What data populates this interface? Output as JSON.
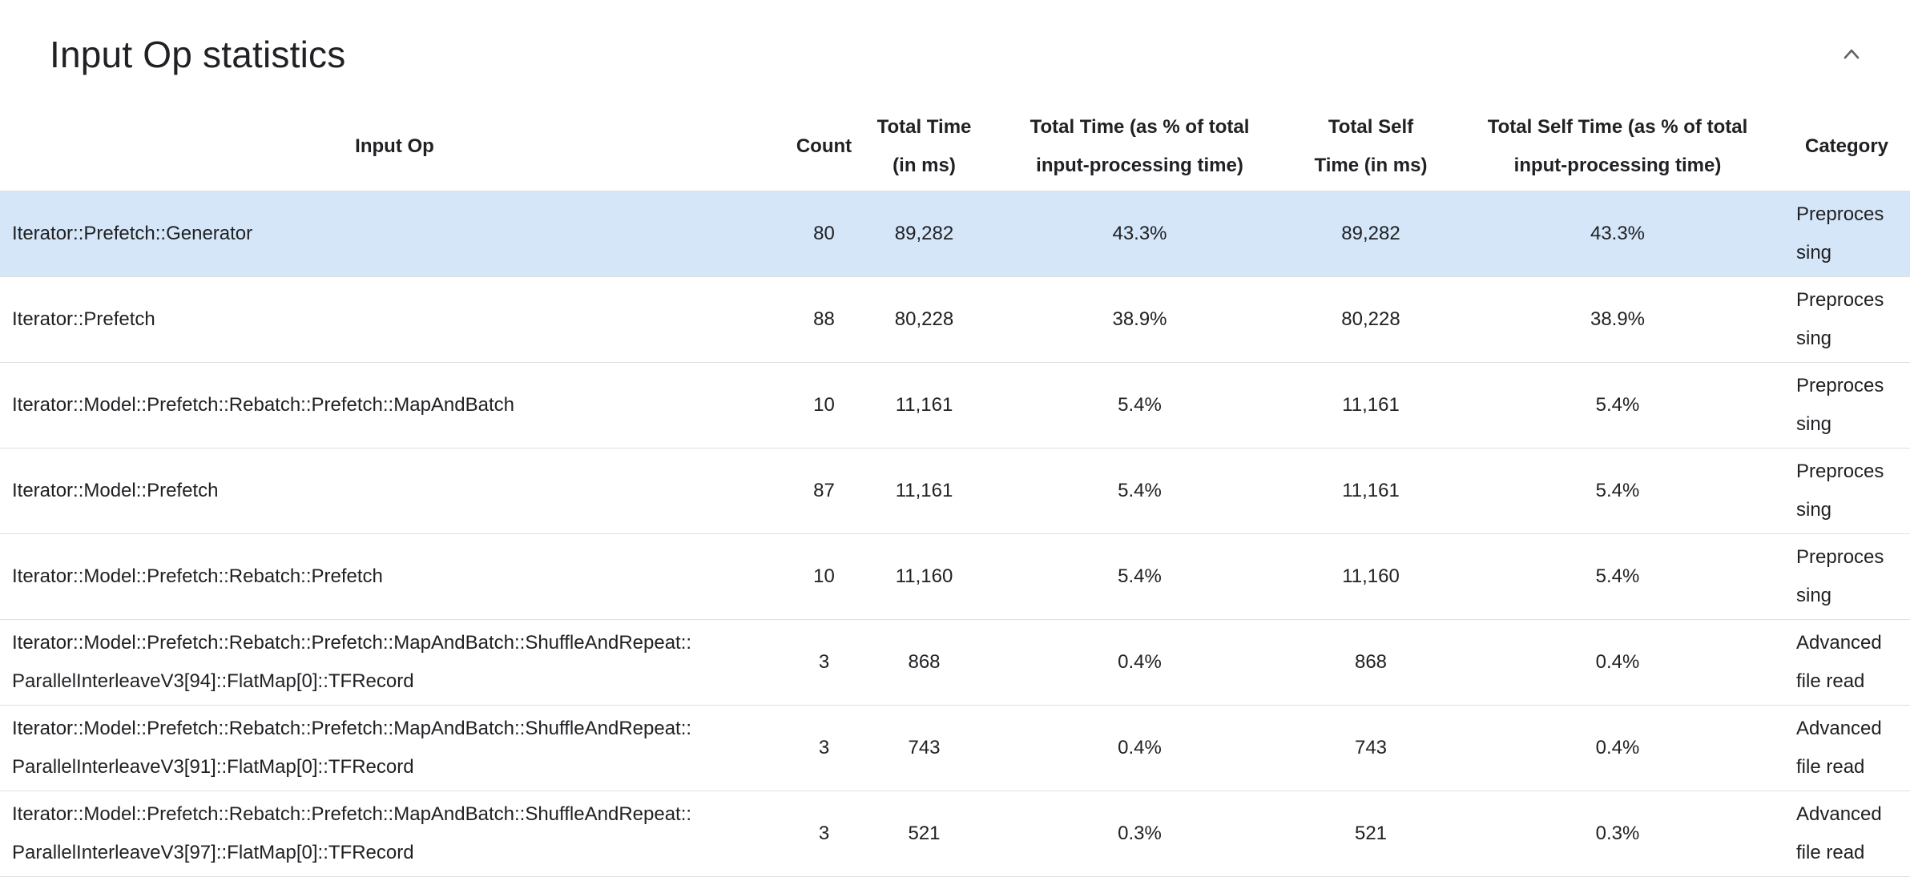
{
  "section": {
    "title": "Input Op statistics"
  },
  "icons": {
    "collapse": "chevron-up-icon"
  },
  "colors": {
    "highlight_row": "#d4e6f8",
    "row_border": "#e0e0e0",
    "text": "#202124"
  },
  "table": {
    "columns": [
      {
        "key": "op",
        "label": "Input Op"
      },
      {
        "key": "count",
        "label": "Count"
      },
      {
        "key": "total_time",
        "label": "Total Time (in ms)"
      },
      {
        "key": "total_time_pct",
        "label": "Total Time (as % of total input-processing time)"
      },
      {
        "key": "self_time",
        "label": "Total Self Time (in ms)"
      },
      {
        "key": "self_time_pct",
        "label": "Total Self Time (as % of total input-processing time)"
      },
      {
        "key": "category",
        "label": "Category"
      }
    ],
    "rows": [
      {
        "op": "Iterator::Prefetch::Generator",
        "count": "80",
        "total_time": "89,282",
        "total_time_pct": "43.3%",
        "self_time": "89,282",
        "self_time_pct": "43.3%",
        "category": "Preprocessing",
        "highlighted": true
      },
      {
        "op": "Iterator::Prefetch",
        "count": "88",
        "total_time": "80,228",
        "total_time_pct": "38.9%",
        "self_time": "80,228",
        "self_time_pct": "38.9%",
        "category": "Preprocessing",
        "highlighted": false
      },
      {
        "op": "Iterator::Model::Prefetch::Rebatch::Prefetch::MapAndBatch",
        "count": "10",
        "total_time": "11,161",
        "total_time_pct": "5.4%",
        "self_time": "11,161",
        "self_time_pct": "5.4%",
        "category": "Preprocessing",
        "highlighted": false
      },
      {
        "op": "Iterator::Model::Prefetch",
        "count": "87",
        "total_time": "11,161",
        "total_time_pct": "5.4%",
        "self_time": "11,161",
        "self_time_pct": "5.4%",
        "category": "Preprocessing",
        "highlighted": false
      },
      {
        "op": "Iterator::Model::Prefetch::Rebatch::Prefetch",
        "count": "10",
        "total_time": "11,160",
        "total_time_pct": "5.4%",
        "self_time": "11,160",
        "self_time_pct": "5.4%",
        "category": "Preprocessing",
        "highlighted": false
      },
      {
        "op": "Iterator::Model::Prefetch::Rebatch::Prefetch::MapAndBatch::ShuffleAndRepeat::ParallelInterleaveV3[94]::FlatMap[0]::TFRecord",
        "count": "3",
        "total_time": "868",
        "total_time_pct": "0.4%",
        "self_time": "868",
        "self_time_pct": "0.4%",
        "category": "Advanced file read",
        "highlighted": false
      },
      {
        "op": "Iterator::Model::Prefetch::Rebatch::Prefetch::MapAndBatch::ShuffleAndRepeat::ParallelInterleaveV3[91]::FlatMap[0]::TFRecord",
        "count": "3",
        "total_time": "743",
        "total_time_pct": "0.4%",
        "self_time": "743",
        "self_time_pct": "0.4%",
        "category": "Advanced file read",
        "highlighted": false
      },
      {
        "op": "Iterator::Model::Prefetch::Rebatch::Prefetch::MapAndBatch::ShuffleAndRepeat::ParallelInterleaveV3[97]::FlatMap[0]::TFRecord",
        "count": "3",
        "total_time": "521",
        "total_time_pct": "0.3%",
        "self_time": "521",
        "self_time_pct": "0.3%",
        "category": "Advanced file read",
        "highlighted": false
      }
    ]
  }
}
